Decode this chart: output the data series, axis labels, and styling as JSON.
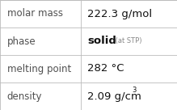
{
  "rows": [
    {
      "label": "molar mass",
      "value": "222.3 g/mol",
      "value_parts": null
    },
    {
      "label": "phase",
      "value": null,
      "value_parts": [
        {
          "text": "solid",
          "bold": true
        },
        {
          "text": " (at STP)",
          "bold": false
        }
      ]
    },
    {
      "label": "melting point",
      "value": "282 °C",
      "value_parts": null
    },
    {
      "label": "density",
      "value": null,
      "value_parts": [
        {
          "text": "2.09 g/cm",
          "bold": false
        },
        {
          "text": "3",
          "bold": false,
          "super": true
        }
      ]
    }
  ],
  "bg_color": "#ffffff",
  "border_color": "#bbbbbb",
  "label_color": "#505050",
  "value_color": "#111111",
  "small_color": "#888888",
  "col_split": 0.455,
  "label_fontsize": 8.5,
  "value_fontsize": 9.5,
  "small_fontsize": 6.0,
  "super_fontsize": 6.0
}
